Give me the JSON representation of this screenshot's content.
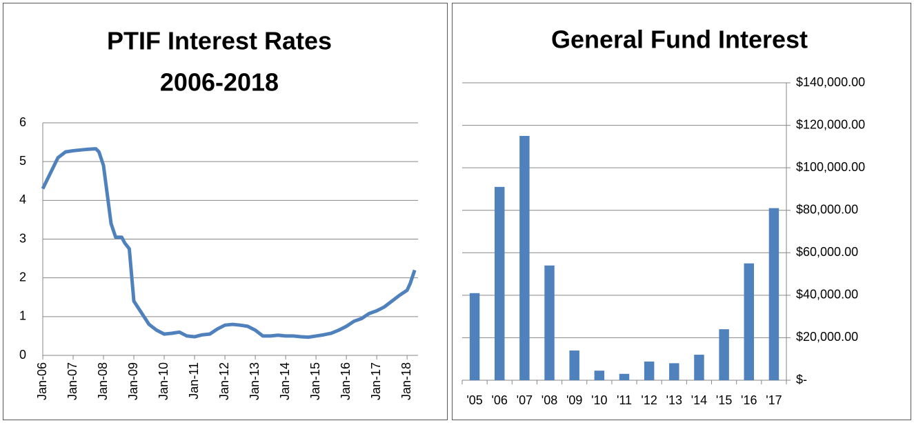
{
  "chart_data": [
    {
      "type": "line",
      "title": [
        "PTIF Interest Rates",
        "2006-2018"
      ],
      "color": "#4f81bd",
      "grid": true,
      "x": [
        2006.0,
        2006.25,
        2006.5,
        2006.75,
        2007.0,
        2007.25,
        2007.5,
        2007.75,
        2007.85,
        2008.0,
        2008.15,
        2008.25,
        2008.4,
        2008.6,
        2008.7,
        2008.85,
        2009.0,
        2009.25,
        2009.5,
        2009.75,
        2010.0,
        2010.25,
        2010.5,
        2010.75,
        2011.0,
        2011.25,
        2011.5,
        2011.75,
        2012.0,
        2012.25,
        2012.5,
        2012.75,
        2013.0,
        2013.25,
        2013.5,
        2013.75,
        2014.0,
        2014.25,
        2014.5,
        2014.75,
        2015.0,
        2015.25,
        2015.5,
        2015.75,
        2016.0,
        2016.25,
        2016.5,
        2016.75,
        2017.0,
        2017.25,
        2017.5,
        2017.75,
        2018.0,
        2018.1,
        2018.25
      ],
      "values": [
        4.3,
        4.7,
        5.1,
        5.25,
        5.28,
        5.3,
        5.32,
        5.33,
        5.25,
        4.9,
        4.0,
        3.4,
        3.05,
        3.05,
        2.9,
        2.75,
        1.4,
        1.1,
        0.8,
        0.65,
        0.55,
        0.57,
        0.6,
        0.5,
        0.48,
        0.53,
        0.55,
        0.68,
        0.78,
        0.8,
        0.78,
        0.75,
        0.65,
        0.5,
        0.5,
        0.52,
        0.5,
        0.5,
        0.48,
        0.47,
        0.5,
        0.53,
        0.57,
        0.65,
        0.75,
        0.88,
        0.95,
        1.08,
        1.15,
        1.25,
        1.4,
        1.55,
        1.68,
        1.85,
        2.2
      ],
      "xlim": [
        2006,
        2018.36
      ],
      "xticks": [
        {
          "value": 2006,
          "label": "Jan-06"
        },
        {
          "value": 2007,
          "label": "Jan-07"
        },
        {
          "value": 2008,
          "label": "Jan-08"
        },
        {
          "value": 2009,
          "label": "Jan-09"
        },
        {
          "value": 2010,
          "label": "Jan-10"
        },
        {
          "value": 2011,
          "label": "Jan-11"
        },
        {
          "value": 2012,
          "label": "Jan-12"
        },
        {
          "value": 2013,
          "label": "Jan-13"
        },
        {
          "value": 2014,
          "label": "Jan-14"
        },
        {
          "value": 2015,
          "label": "Jan-15"
        },
        {
          "value": 2016,
          "label": "Jan-16"
        },
        {
          "value": 2017,
          "label": "Jan-17"
        },
        {
          "value": 2018,
          "label": "Jan-18"
        }
      ],
      "ylim": [
        0,
        6
      ],
      "yticks": [
        0,
        1,
        2,
        3,
        4,
        5,
        6
      ]
    },
    {
      "type": "bar",
      "title": [
        "General Fund Interest"
      ],
      "color": "#4f81bd",
      "grid": true,
      "y_axis_side": "right",
      "categories": [
        "'05",
        "'06",
        "'07",
        "'08",
        "'09",
        "'10",
        "'11",
        "'12",
        "'13",
        "'14",
        "'15",
        "'16",
        "'17"
      ],
      "values": [
        41000,
        91000,
        115000,
        54000,
        14000,
        4500,
        3000,
        8800,
        8000,
        12000,
        24000,
        55000,
        81000
      ],
      "ylim": [
        0,
        140000
      ],
      "yticks": [
        {
          "value": 0,
          "label": "$-"
        },
        {
          "value": 20000,
          "label": "$20,000.00"
        },
        {
          "value": 40000,
          "label": "$40,000.00"
        },
        {
          "value": 60000,
          "label": "$60,000.00"
        },
        {
          "value": 80000,
          "label": "$80,000.00"
        },
        {
          "value": 100000,
          "label": "$100,000.00"
        },
        {
          "value": 120000,
          "label": "$120,000.00"
        },
        {
          "value": 140000,
          "label": "$140,000.00"
        }
      ]
    }
  ]
}
